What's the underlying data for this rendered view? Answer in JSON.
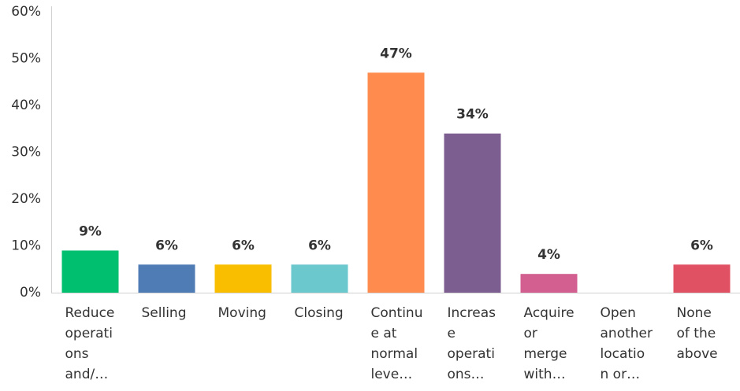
{
  "chart_data": {
    "type": "bar",
    "categories": [
      [
        "Reduce",
        "operati",
        "ons",
        "and/…"
      ],
      [
        "Selling"
      ],
      [
        "Moving"
      ],
      [
        "Closing"
      ],
      [
        "Continu",
        "e at",
        "normal",
        "leve…"
      ],
      [
        "Increas",
        "e",
        "operati",
        "ons…"
      ],
      [
        "Acquire",
        "or",
        "merge",
        "with…"
      ],
      [
        "Open",
        "another",
        "locatio",
        "n or…"
      ],
      [
        "None",
        "of the",
        "above"
      ]
    ],
    "values": [
      9,
      6,
      6,
      6,
      47,
      34,
      4,
      0,
      6
    ],
    "value_labels": [
      "9%",
      "6%",
      "6%",
      "6%",
      "47%",
      "34%",
      "4%",
      null,
      "6%"
    ],
    "colors": [
      "#00bf6f",
      "#507cb6",
      "#f9be00",
      "#6bc8cd",
      "#ff8b4f",
      "#7d5e90",
      "#d25f90",
      "#999999",
      "#e05263"
    ],
    "ylim": [
      0,
      60
    ],
    "yticks": [
      {
        "value": 0,
        "label": "0%"
      },
      {
        "value": 10,
        "label": "10%"
      },
      {
        "value": 20,
        "label": "20%"
      },
      {
        "value": 30,
        "label": "30%"
      },
      {
        "value": 40,
        "label": "40%"
      },
      {
        "value": 50,
        "label": "50%"
      },
      {
        "value": 60,
        "label": "60%"
      }
    ],
    "grid": false
  }
}
